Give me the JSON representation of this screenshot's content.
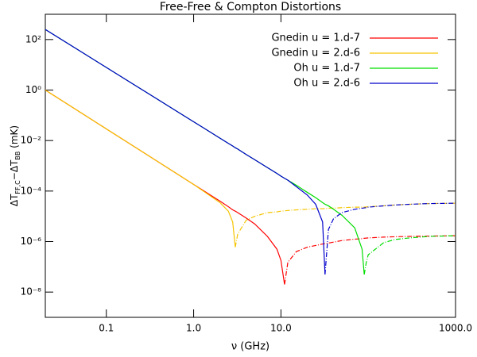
{
  "chart_data": {
    "type": "line",
    "title": "Free-Free & Compton Distortions",
    "xlabel": "ν (GHz)",
    "ylabel": [
      "ΔT",
      "FF,C",
      "−ΔT",
      "BB",
      " (mK)"
    ],
    "xscale": "log",
    "yscale": "log",
    "xlim": [
      0.02,
      1000
    ],
    "ylim": [
      1e-09,
      1000
    ],
    "xticks": [
      0.1,
      {
        "value": 1,
        "label": "1.0"
      },
      {
        "value": 10,
        "label": "10.0"
      },
      {
        "value": 1000,
        "label": "1000.0"
      }
    ],
    "yticks": [
      {
        "value": 1e-08,
        "label": "10⁻⁸"
      },
      {
        "value": 1e-06,
        "label": "10⁻⁶"
      },
      {
        "value": 0.0001,
        "label": "10⁻⁴"
      },
      {
        "value": 0.01,
        "label": "10⁻²"
      },
      {
        "value": 1,
        "label": "10⁰"
      },
      {
        "value": 100,
        "label": "10²"
      }
    ],
    "legend": "upper right",
    "x": [
      0.02,
      0.05,
      0.1,
      0.2,
      0.5,
      1,
      2,
      2.5,
      2.8,
      3,
      3.2,
      4,
      5,
      7,
      9,
      10,
      11,
      12,
      15,
      20,
      25,
      30,
      32,
      35,
      40,
      50,
      70,
      85,
      90,
      95,
      100,
      150,
      200,
      300,
      500,
      1000
    ],
    "series": [
      {
        "name": "Gnedin u = 1.d-7",
        "color": "#ff0000",
        "values": [
          1,
          0.133,
          0.029,
          0.0063,
          0.00084,
          0.000183,
          4e-05,
          2.4e-05,
          1.8e-05,
          1.6e-05,
          1.4e-05,
          8.5e-06,
          5e-06,
          1.6e-06,
          5e-07,
          1.8e-07,
          2e-08,
          null,
          null,
          null,
          null,
          null,
          null,
          null,
          null,
          null,
          null,
          null,
          null,
          null,
          null,
          null,
          null,
          null,
          null,
          null
        ],
        "dashed_values": [
          null,
          null,
          null,
          null,
          null,
          null,
          null,
          null,
          null,
          null,
          null,
          null,
          null,
          null,
          null,
          null,
          2e-08,
          1.5e-07,
          4e-07,
          6e-07,
          7e-07,
          8e-07,
          8.3e-07,
          8.7e-07,
          9.5e-07,
          1.1e-06,
          1.25e-06,
          1.3e-06,
          1.35e-06,
          1.37e-06,
          1.4e-06,
          1.5e-06,
          1.55e-06,
          1.6e-06,
          1.65e-06,
          1.7e-06
        ]
      },
      {
        "name": "Gnedin u = 2.d-6",
        "color": "#f5c400",
        "values": [
          1,
          0.133,
          0.029,
          0.0063,
          0.00084,
          0.000183,
          3.5e-05,
          1.6e-05,
          6e-06,
          6e-07,
          null,
          null,
          null,
          null,
          null,
          null,
          null,
          null,
          null,
          null,
          null,
          null,
          null,
          null,
          null,
          null,
          null,
          null,
          null,
          null,
          null,
          null,
          null,
          null,
          null,
          null
        ],
        "dashed_values": [
          null,
          null,
          null,
          null,
          null,
          null,
          null,
          null,
          null,
          6e-07,
          2e-06,
          7e-06,
          1e-05,
          1.4e-05,
          1.5e-05,
          1.6e-05,
          1.65e-05,
          1.7e-05,
          1.8e-05,
          1.9e-05,
          2e-05,
          2e-05,
          2.05e-05,
          2.1e-05,
          2.1e-05,
          2.2e-05,
          2.3e-05,
          2.3e-05,
          2.3e-05,
          2.35e-05,
          2.4e-05,
          2.6e-05,
          2.8e-05,
          3e-05,
          3.2e-05,
          3.3e-05
        ]
      },
      {
        "name": "Oh u = 1.d-7",
        "color": "#00dd00",
        "values": [
          250,
          34.9,
          7.85,
          1.77,
          0.247,
          0.0556,
          0.0125,
          0.0077,
          0.0061,
          0.0052,
          0.0046,
          0.0028,
          0.00175,
          0.00085,
          0.0005,
          0.00039,
          0.00032,
          0.00027,
          0.00017,
          8.9e-05,
          5.5e-05,
          3.5e-05,
          3e-05,
          2.6e-05,
          1.9e-05,
          1.1e-05,
          3.5e-06,
          5e-07,
          5e-08,
          null,
          null,
          null,
          null,
          null,
          null,
          null
        ],
        "dashed_values": [
          null,
          null,
          null,
          null,
          null,
          null,
          null,
          null,
          null,
          null,
          null,
          null,
          null,
          null,
          null,
          null,
          null,
          null,
          null,
          null,
          null,
          null,
          null,
          null,
          null,
          null,
          null,
          null,
          5e-08,
          1.5e-07,
          3e-07,
          9e-07,
          1.2e-06,
          1.4e-06,
          1.6e-06,
          1.7e-06
        ]
      },
      {
        "name": "Oh u = 2.d-6",
        "color": "#0000cc",
        "values": [
          250,
          34.9,
          7.85,
          1.77,
          0.247,
          0.0556,
          0.0125,
          0.0077,
          0.0061,
          0.0052,
          0.0046,
          0.0028,
          0.00175,
          0.00085,
          0.0005,
          0.00039,
          0.00032,
          0.00027,
          0.00015,
          7e-05,
          3e-05,
          6e-06,
          5e-08,
          null,
          null,
          null,
          null,
          null,
          null,
          null,
          null,
          null,
          null,
          null,
          null,
          null
        ],
        "dashed_values": [
          null,
          null,
          null,
          null,
          null,
          null,
          null,
          null,
          null,
          null,
          null,
          null,
          null,
          null,
          null,
          null,
          null,
          null,
          null,
          null,
          null,
          null,
          5e-08,
          3e-06,
          8e-06,
          1.4e-05,
          1.9e-05,
          2.1e-05,
          2.15e-05,
          2.2e-05,
          2.3e-05,
          2.6e-05,
          2.8e-05,
          3e-05,
          3.2e-05,
          3.3e-05
        ]
      }
    ]
  }
}
